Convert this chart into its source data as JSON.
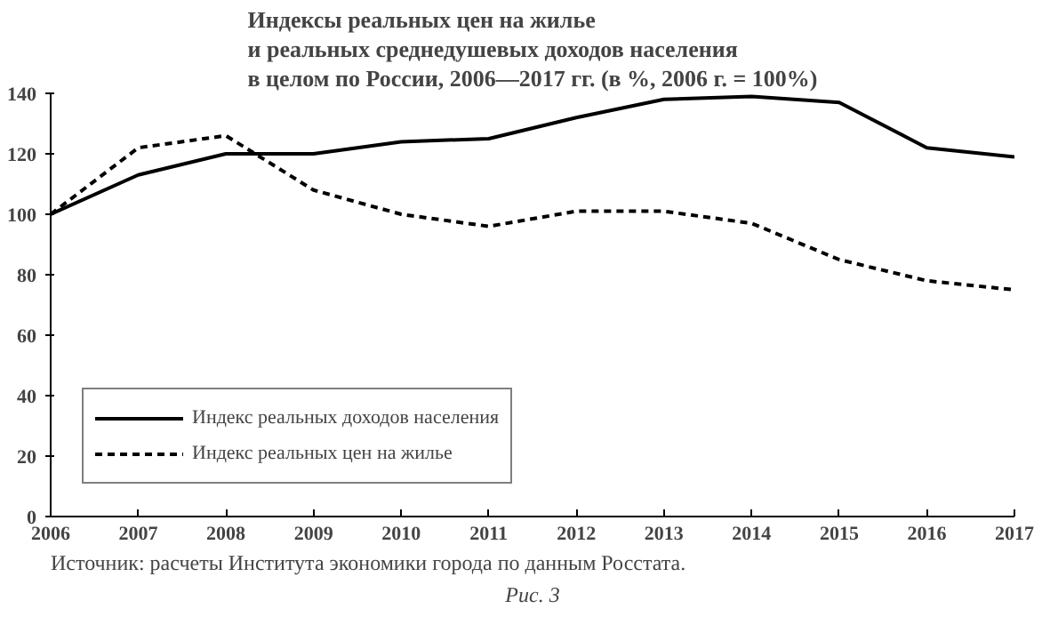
{
  "chart_data": {
    "type": "line",
    "title": "Индексы реальных цен на жилье\nи реальных среднедушевых доходов населения\nв целом по России, 2006—2017 гг. (в %, 2006 г. = 100%)",
    "x": [
      2006,
      2007,
      2008,
      2009,
      2010,
      2011,
      2012,
      2013,
      2014,
      2015,
      2016,
      2017
    ],
    "series": [
      {
        "name": "Индекс реальных доходов населения",
        "color": "#000000",
        "line_style": "solid",
        "values": [
          100,
          113,
          120,
          120,
          124,
          125,
          132,
          138,
          139,
          137,
          122,
          119
        ]
      },
      {
        "name": "Индекс реальных цен на жилье",
        "color": "#000000",
        "line_style": "dashed",
        "values": [
          100,
          122,
          126,
          108,
          100,
          96,
          101,
          101,
          97,
          85,
          78,
          75
        ]
      }
    ],
    "xlim": [
      2006,
      2017
    ],
    "xticks": [
      2006,
      2007,
      2008,
      2009,
      2010,
      2011,
      2012,
      2013,
      2014,
      2015,
      2016,
      2017
    ],
    "ylim": [
      0,
      140
    ],
    "yticks": [
      0,
      20,
      40,
      60,
      80,
      100,
      120,
      140
    ],
    "grid": false,
    "legend": "bottom left",
    "annotations": [
      "Источник: расчеты Института экономики города по данным Росстата.",
      "Рис. 3"
    ]
  }
}
